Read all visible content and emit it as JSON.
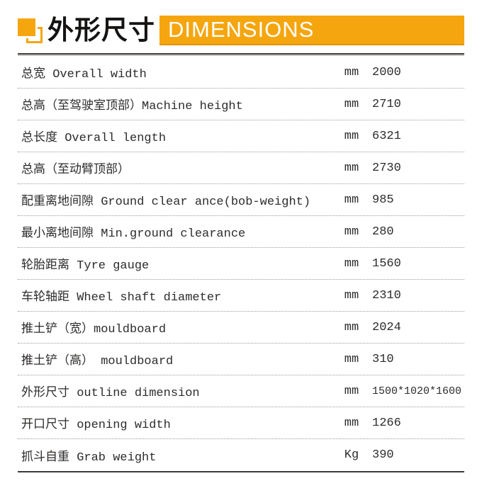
{
  "header": {
    "icon": "overlapping-squares-icon",
    "title_cn": "外形尺寸",
    "banner_text": "DIMENSIONS",
    "accent_color": "#f5a60f"
  },
  "table": {
    "rows": [
      {
        "label": "总宽 Overall width",
        "unit": "mm",
        "value": "2000"
      },
      {
        "label": "总高（至驾驶室顶部）Machine height",
        "unit": "mm",
        "value": "2710"
      },
      {
        "label": "总长度 Overall length",
        "unit": "mm",
        "value": "6321"
      },
      {
        "label": "总高（至动臂顶部）",
        "unit": "mm",
        "value": "2730"
      },
      {
        "label": "配重离地间隙 Ground clear ance(bob-weight)",
        "unit": "mm",
        "value": "985"
      },
      {
        "label": "最小离地间隙 Min.ground clearance",
        "unit": "mm",
        "value": "280"
      },
      {
        "label": "轮胎距离 Tyre gauge",
        "unit": "mm",
        "value": "1560"
      },
      {
        "label": "车轮轴距 Wheel shaft diameter",
        "unit": "mm",
        "value": "2310"
      },
      {
        "label": "推土铲（宽）mouldboard",
        "unit": "mm",
        "value": "2024"
      },
      {
        "label": "推土铲（高） mouldboard",
        "unit": "mm",
        "value": "310"
      },
      {
        "label": "外形尺寸 outline dimension",
        "unit": "mm",
        "value": "1500*1020*1600"
      },
      {
        "label": "开口尺寸 opening width",
        "unit": "mm",
        "value": "1266"
      },
      {
        "label": "抓斗自重 Grab weight",
        "unit": "Kg",
        "value": "390"
      }
    ]
  }
}
